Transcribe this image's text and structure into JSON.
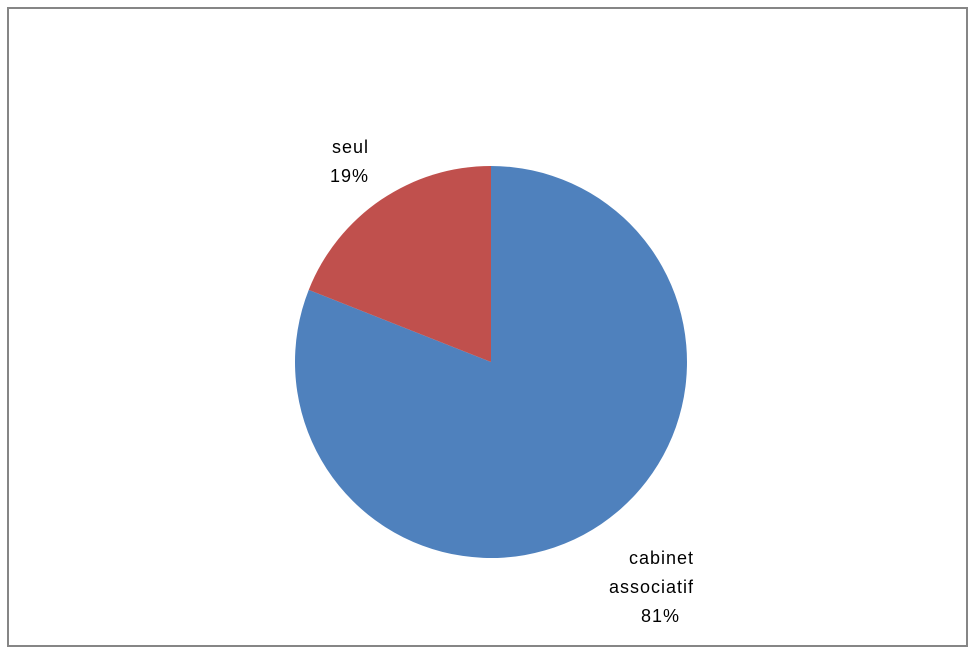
{
  "chart_data": {
    "type": "pie",
    "title": "",
    "slices": [
      {
        "label": "cabinet associatif",
        "value": 81,
        "percent_label": "81%",
        "color": "#4F81BD"
      },
      {
        "label": "seul",
        "value": 19,
        "percent_label": "19%",
        "color": "#C0504D"
      }
    ],
    "start_angle_deg": 0,
    "direction": "clockwise",
    "legend": "none",
    "data_labels": "outside-end"
  }
}
